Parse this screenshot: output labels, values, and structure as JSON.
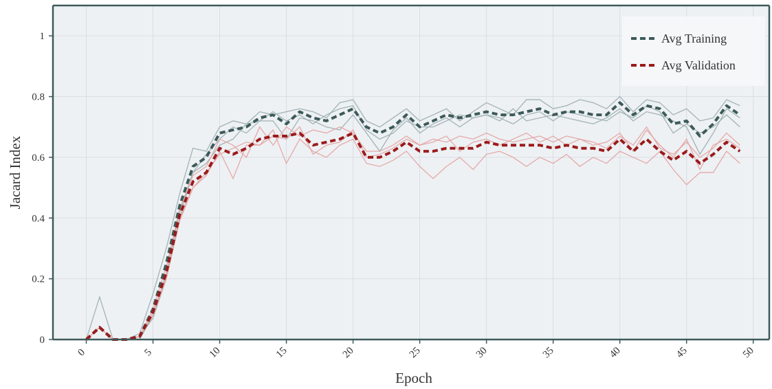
{
  "chart_data": {
    "type": "line",
    "xlabel": "Epoch",
    "ylabel": "Jacard Index",
    "xlim": [
      -2.5,
      51.2
    ],
    "ylim": [
      0,
      1.1
    ],
    "x_ticks": [
      0,
      5,
      10,
      15,
      20,
      25,
      30,
      35,
      40,
      45,
      50
    ],
    "x_tick_labels": [
      "0",
      "5",
      "10",
      "15",
      "20",
      "25",
      "30",
      "35",
      "40",
      "45",
      "50"
    ],
    "y_ticks": [
      0,
      0.2,
      0.4,
      0.6,
      0.8,
      1
    ],
    "y_tick_labels": [
      "0",
      "0.2",
      "0.4",
      "0.6",
      "0.8",
      "1"
    ],
    "grid": true,
    "legend_position": "top-right",
    "colors": {
      "training": "#3d5a5a",
      "validation": "#9b1b1b",
      "training_folds": "#9fb0b3",
      "validation_folds": "#e3a6a6",
      "background": "#eef1f4",
      "grid": "#d9dde2",
      "axis": "#3d5a5a"
    },
    "series": [
      {
        "name": "Avg Training",
        "style": "dashed",
        "x": [
          0,
          1,
          2,
          3,
          4,
          5,
          6,
          7,
          8,
          9,
          10,
          11,
          12,
          13,
          14,
          15,
          16,
          17,
          18,
          19,
          20,
          21,
          22,
          23,
          24,
          25,
          26,
          27,
          28,
          29,
          30,
          31,
          32,
          33,
          34,
          35,
          36,
          37,
          38,
          39,
          40,
          41,
          42,
          43,
          44,
          45,
          46,
          47,
          48,
          49
        ],
        "y": [
          0,
          0.04,
          0,
          0,
          0.01,
          0.1,
          0.25,
          0.44,
          0.57,
          0.6,
          0.68,
          0.69,
          0.7,
          0.73,
          0.74,
          0.71,
          0.75,
          0.73,
          0.72,
          0.74,
          0.76,
          0.7,
          0.68,
          0.7,
          0.74,
          0.7,
          0.72,
          0.74,
          0.73,
          0.74,
          0.75,
          0.74,
          0.74,
          0.75,
          0.76,
          0.74,
          0.75,
          0.75,
          0.74,
          0.74,
          0.78,
          0.74,
          0.77,
          0.76,
          0.71,
          0.72,
          0.67,
          0.71,
          0.77,
          0.74
        ]
      },
      {
        "name": "Avg Validation",
        "style": "dashed",
        "x": [
          0,
          1,
          2,
          3,
          4,
          5,
          6,
          7,
          8,
          9,
          10,
          11,
          12,
          13,
          14,
          15,
          16,
          17,
          18,
          19,
          20,
          21,
          22,
          23,
          24,
          25,
          26,
          27,
          28,
          29,
          30,
          31,
          32,
          33,
          34,
          35,
          36,
          37,
          38,
          39,
          40,
          41,
          42,
          43,
          44,
          45,
          46,
          47,
          48,
          49
        ],
        "y": [
          0,
          0.04,
          0,
          0,
          0.01,
          0.09,
          0.22,
          0.41,
          0.52,
          0.55,
          0.63,
          0.61,
          0.63,
          0.66,
          0.67,
          0.67,
          0.68,
          0.64,
          0.65,
          0.66,
          0.68,
          0.6,
          0.6,
          0.62,
          0.65,
          0.62,
          0.62,
          0.63,
          0.63,
          0.63,
          0.65,
          0.64,
          0.64,
          0.64,
          0.64,
          0.63,
          0.64,
          0.63,
          0.63,
          0.62,
          0.66,
          0.62,
          0.66,
          0.62,
          0.59,
          0.62,
          0.58,
          0.61,
          0.65,
          0.62
        ]
      }
    ],
    "fold_series": [
      {
        "group": "training",
        "x": [
          0,
          1,
          2,
          3,
          4,
          5,
          6,
          7,
          8,
          9,
          10,
          11,
          12,
          13,
          14,
          15,
          16,
          17,
          18,
          19,
          20,
          21,
          22,
          23,
          24,
          25,
          26,
          27,
          28,
          29,
          30,
          31,
          32,
          33,
          34,
          35,
          36,
          37,
          38,
          39,
          40,
          41,
          42,
          43,
          44,
          45,
          46,
          47,
          48,
          49
        ],
        "y": [
          0,
          0.14,
          0,
          0,
          0.02,
          0.15,
          0.3,
          0.48,
          0.63,
          0.62,
          0.7,
          0.72,
          0.71,
          0.75,
          0.74,
          0.75,
          0.76,
          0.75,
          0.73,
          0.78,
          0.79,
          0.72,
          0.7,
          0.73,
          0.76,
          0.72,
          0.74,
          0.76,
          0.72,
          0.75,
          0.78,
          0.76,
          0.74,
          0.79,
          0.79,
          0.76,
          0.77,
          0.79,
          0.78,
          0.76,
          0.8,
          0.75,
          0.79,
          0.78,
          0.74,
          0.76,
          0.72,
          0.73,
          0.79,
          0.77
        ]
      },
      {
        "group": "training",
        "x": [
          0,
          1,
          2,
          3,
          4,
          5,
          6,
          7,
          8,
          9,
          10,
          11,
          12,
          13,
          14,
          15,
          16,
          17,
          18,
          19,
          20,
          21,
          22,
          23,
          24,
          25,
          26,
          27,
          28,
          29,
          30,
          31,
          32,
          33,
          34,
          35,
          36,
          37,
          38,
          39,
          40,
          41,
          42,
          43,
          44,
          45,
          46,
          47,
          48,
          49
        ],
        "y": [
          0,
          0,
          0,
          0,
          0,
          0.08,
          0.22,
          0.42,
          0.55,
          0.61,
          0.66,
          0.7,
          0.68,
          0.72,
          0.75,
          0.72,
          0.74,
          0.71,
          0.74,
          0.76,
          0.77,
          0.69,
          0.66,
          0.68,
          0.72,
          0.7,
          0.7,
          0.72,
          0.74,
          0.73,
          0.74,
          0.72,
          0.76,
          0.72,
          0.73,
          0.74,
          0.73,
          0.72,
          0.71,
          0.73,
          0.76,
          0.72,
          0.75,
          0.74,
          0.72,
          0.7,
          0.61,
          0.68,
          0.76,
          0.73
        ]
      },
      {
        "group": "training",
        "x": [
          0,
          1,
          2,
          3,
          4,
          5,
          6,
          7,
          8,
          9,
          10,
          11,
          12,
          13,
          14,
          15,
          16,
          17,
          18,
          19,
          20,
          21,
          22,
          23,
          24,
          25,
          26,
          27,
          28,
          29,
          30,
          31,
          32,
          33,
          34,
          35,
          36,
          37,
          38,
          39,
          40,
          41,
          42,
          43,
          44,
          45,
          46,
          47,
          48,
          49
        ],
        "y": [
          0,
          0,
          0,
          0,
          0.01,
          0.07,
          0.2,
          0.4,
          0.55,
          0.58,
          0.64,
          0.66,
          0.71,
          0.72,
          0.72,
          0.66,
          0.73,
          0.72,
          0.7,
          0.69,
          0.74,
          0.68,
          0.62,
          0.69,
          0.73,
          0.68,
          0.71,
          0.73,
          0.7,
          0.73,
          0.74,
          0.73,
          0.71,
          0.74,
          0.75,
          0.72,
          0.75,
          0.74,
          0.73,
          0.72,
          0.75,
          0.73,
          0.77,
          0.75,
          0.68,
          0.71,
          0.68,
          0.7,
          0.74,
          0.7
        ]
      },
      {
        "group": "validation",
        "x": [
          0,
          1,
          2,
          3,
          4,
          5,
          6,
          7,
          8,
          9,
          10,
          11,
          12,
          13,
          14,
          15,
          16,
          17,
          18,
          19,
          20,
          21,
          22,
          23,
          24,
          25,
          26,
          27,
          28,
          29,
          30,
          31,
          32,
          33,
          34,
          35,
          36,
          37,
          38,
          39,
          40,
          41,
          42,
          43,
          44,
          45,
          46,
          47,
          48,
          49
        ],
        "y": [
          0,
          0.04,
          0,
          0,
          0.01,
          0.1,
          0.24,
          0.43,
          0.54,
          0.57,
          0.66,
          0.64,
          0.6,
          0.7,
          0.64,
          0.7,
          0.67,
          0.69,
          0.68,
          0.7,
          0.68,
          0.62,
          0.62,
          0.64,
          0.67,
          0.64,
          0.66,
          0.65,
          0.67,
          0.66,
          0.68,
          0.66,
          0.65,
          0.66,
          0.67,
          0.65,
          0.67,
          0.66,
          0.65,
          0.63,
          0.67,
          0.64,
          0.7,
          0.63,
          0.61,
          0.65,
          0.6,
          0.63,
          0.68,
          0.64
        ]
      },
      {
        "group": "validation",
        "x": [
          0,
          1,
          2,
          3,
          4,
          5,
          6,
          7,
          8,
          9,
          10,
          11,
          12,
          13,
          14,
          15,
          16,
          17,
          18,
          19,
          20,
          21,
          22,
          23,
          24,
          25,
          26,
          27,
          28,
          29,
          30,
          31,
          32,
          33,
          34,
          35,
          36,
          37,
          38,
          39,
          40,
          41,
          42,
          43,
          44,
          45,
          46,
          47,
          48,
          49
        ],
        "y": [
          0,
          0.04,
          0,
          0,
          0.01,
          0.09,
          0.21,
          0.4,
          0.5,
          0.54,
          0.62,
          0.53,
          0.64,
          0.64,
          0.69,
          0.58,
          0.66,
          0.62,
          0.6,
          0.64,
          0.66,
          0.58,
          0.57,
          0.59,
          0.62,
          0.57,
          0.53,
          0.57,
          0.6,
          0.56,
          0.61,
          0.62,
          0.6,
          0.57,
          0.6,
          0.58,
          0.61,
          0.57,
          0.6,
          0.58,
          0.62,
          0.6,
          0.58,
          0.62,
          0.56,
          0.51,
          0.55,
          0.55,
          0.62,
          0.58
        ]
      },
      {
        "group": "validation",
        "x": [
          0,
          1,
          2,
          3,
          4,
          5,
          6,
          7,
          8,
          9,
          10,
          11,
          12,
          13,
          14,
          15,
          16,
          17,
          18,
          19,
          20,
          21,
          22,
          23,
          24,
          25,
          26,
          27,
          28,
          29,
          30,
          31,
          32,
          33,
          34,
          35,
          36,
          37,
          38,
          39,
          40,
          41,
          42,
          43,
          44,
          45,
          46,
          47,
          48,
          49
        ],
        "y": [
          0,
          0.04,
          0,
          0,
          0.01,
          0.08,
          0.2,
          0.39,
          0.5,
          0.55,
          0.61,
          0.63,
          0.65,
          0.64,
          0.67,
          0.66,
          0.7,
          0.61,
          0.64,
          0.65,
          0.69,
          0.6,
          0.61,
          0.63,
          0.66,
          0.64,
          0.65,
          0.67,
          0.62,
          0.65,
          0.66,
          0.64,
          0.66,
          0.68,
          0.65,
          0.67,
          0.64,
          0.66,
          0.64,
          0.65,
          0.68,
          0.62,
          0.69,
          0.64,
          0.6,
          0.66,
          0.56,
          0.64,
          0.66,
          0.63
        ]
      }
    ]
  }
}
